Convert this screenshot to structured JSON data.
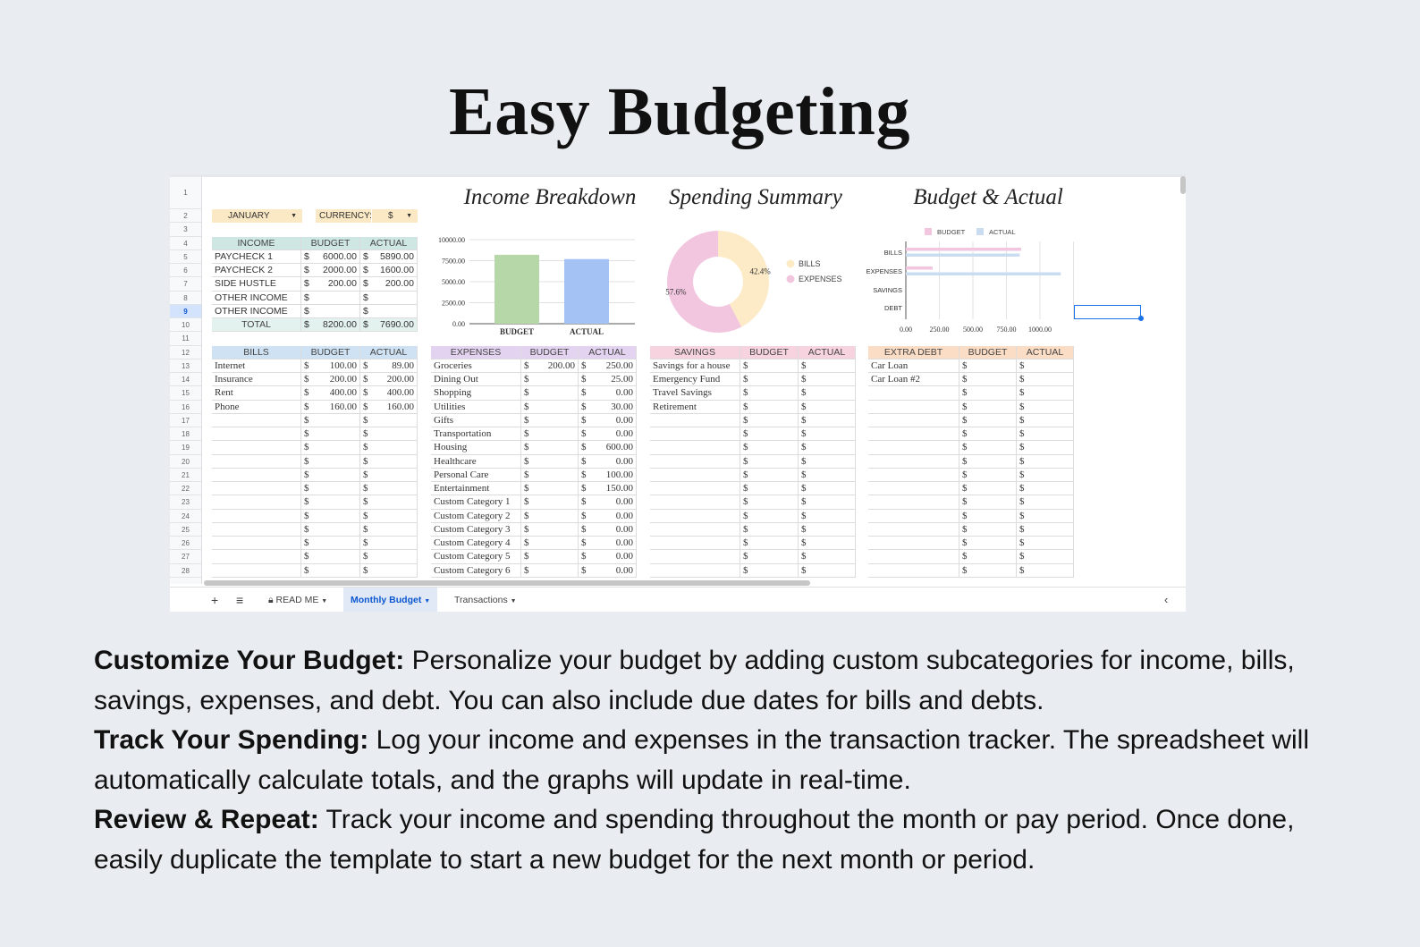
{
  "title": "Easy Budgeting",
  "sheet": {
    "month": "JANUARY",
    "currency_label": "CURRENCY:",
    "currency": "$",
    "selected_row": 9,
    "row_numbers": [
      1,
      2,
      3,
      4,
      5,
      6,
      7,
      8,
      9,
      10,
      11,
      12,
      13,
      14,
      15,
      16,
      17,
      18,
      19,
      20,
      21,
      22,
      23,
      24,
      25,
      26,
      27,
      28
    ],
    "income": {
      "headers": [
        "INCOME",
        "BUDGET",
        "ACTUAL"
      ],
      "header_color": "#cfe7e3",
      "rows": [
        [
          "PAYCHECK 1",
          "6000.00",
          "5890.00"
        ],
        [
          "PAYCHECK 2",
          "2000.00",
          "1600.00"
        ],
        [
          "SIDE HUSTLE",
          "200.00",
          "200.00"
        ],
        [
          "OTHER INCOME",
          "",
          ""
        ],
        [
          "OTHER INCOME",
          "",
          ""
        ]
      ],
      "total": [
        "TOTAL",
        "8200.00",
        "7690.00"
      ]
    },
    "bills": {
      "headers": [
        "BILLS",
        "BUDGET",
        "ACTUAL"
      ],
      "header_color": "#cfe2f3",
      "rows": [
        [
          "Internet",
          "100.00",
          "89.00"
        ],
        [
          "Insurance",
          "200.00",
          "200.00"
        ],
        [
          "Rent",
          "400.00",
          "400.00"
        ],
        [
          "Phone",
          "160.00",
          "160.00"
        ],
        [
          "",
          "",
          ""
        ],
        [
          "",
          "",
          ""
        ],
        [
          "",
          "",
          ""
        ],
        [
          "",
          "",
          ""
        ],
        [
          "",
          "",
          ""
        ],
        [
          "",
          "",
          ""
        ],
        [
          "",
          "",
          ""
        ],
        [
          "",
          "",
          ""
        ],
        [
          "",
          "",
          ""
        ],
        [
          "",
          "",
          ""
        ],
        [
          "",
          "",
          ""
        ],
        [
          "",
          "",
          ""
        ]
      ]
    },
    "expenses": {
      "headers": [
        "EXPENSES",
        "BUDGET",
        "ACTUAL"
      ],
      "header_color": "#e3d3f0",
      "rows": [
        [
          "Groceries",
          "200.00",
          "250.00"
        ],
        [
          "Dining Out",
          "",
          "25.00"
        ],
        [
          "Shopping",
          "",
          "0.00"
        ],
        [
          "Utilities",
          "",
          "30.00"
        ],
        [
          "Gifts",
          "",
          "0.00"
        ],
        [
          "Transportation",
          "",
          "0.00"
        ],
        [
          "Housing",
          "",
          "600.00"
        ],
        [
          "Healthcare",
          "",
          "0.00"
        ],
        [
          "Personal Care",
          "",
          "100.00"
        ],
        [
          "Entertainment",
          "",
          "150.00"
        ],
        [
          "Custom Category 1",
          "",
          "0.00"
        ],
        [
          "Custom Category 2",
          "",
          "0.00"
        ],
        [
          "Custom Category 3",
          "",
          "0.00"
        ],
        [
          "Custom Category 4",
          "",
          "0.00"
        ],
        [
          "Custom Category 5",
          "",
          "0.00"
        ],
        [
          "Custom Category 6",
          "",
          "0.00"
        ]
      ]
    },
    "savings": {
      "headers": [
        "SAVINGS",
        "BUDGET",
        "ACTUAL"
      ],
      "header_color": "#f6d3df",
      "rows": [
        [
          "Savings for a house",
          "",
          ""
        ],
        [
          "Emergency Fund",
          "",
          ""
        ],
        [
          "Travel Savings",
          "",
          ""
        ],
        [
          "Retirement",
          "",
          ""
        ],
        [
          "",
          "",
          ""
        ],
        [
          "",
          "",
          ""
        ],
        [
          "",
          "",
          ""
        ],
        [
          "",
          "",
          ""
        ],
        [
          "",
          "",
          ""
        ],
        [
          "",
          "",
          ""
        ],
        [
          "",
          "",
          ""
        ],
        [
          "",
          "",
          ""
        ],
        [
          "",
          "",
          ""
        ],
        [
          "",
          "",
          ""
        ],
        [
          "",
          "",
          ""
        ],
        [
          "",
          "",
          ""
        ]
      ]
    },
    "extra_debt": {
      "headers": [
        "EXTRA DEBT",
        "BUDGET",
        "ACTUAL"
      ],
      "header_color": "#fbdcc4",
      "rows": [
        [
          "Car Loan",
          "",
          ""
        ],
        [
          "Car Loan #2",
          "",
          ""
        ],
        [
          "",
          "",
          ""
        ],
        [
          "",
          "",
          ""
        ],
        [
          "",
          "",
          ""
        ],
        [
          "",
          "",
          ""
        ],
        [
          "",
          "",
          ""
        ],
        [
          "",
          "",
          ""
        ],
        [
          "",
          "",
          ""
        ],
        [
          "",
          "",
          ""
        ],
        [
          "",
          "",
          ""
        ],
        [
          "",
          "",
          ""
        ],
        [
          "",
          "",
          ""
        ],
        [
          "",
          "",
          ""
        ],
        [
          "",
          "",
          ""
        ],
        [
          "",
          "",
          ""
        ]
      ]
    },
    "tabs": {
      "add_icon": "plus-icon",
      "menu_icon": "menu-icon",
      "items": [
        {
          "label": "READ ME",
          "icon": "lock-icon",
          "active": false
        },
        {
          "label": "Monthly Budget",
          "active": true
        },
        {
          "label": "Transactions",
          "active": false
        }
      ]
    }
  },
  "chart_data": [
    {
      "type": "bar",
      "title": "Income Breakdown",
      "categories": [
        "BUDGET",
        "ACTUAL"
      ],
      "values": [
        8200,
        7690
      ],
      "colors": [
        "#b6d7a8",
        "#a4c2f4"
      ],
      "ylim": [
        0,
        10000
      ],
      "yticks": [
        "0.00",
        "2500.00",
        "5000.00",
        "7500.00",
        "10000.00"
      ],
      "grid": true
    },
    {
      "type": "pie",
      "title": "Spending Summary",
      "donut": true,
      "labels": [
        "BILLS",
        "EXPENSES"
      ],
      "values": [
        42.4,
        57.6
      ],
      "data_labels": [
        "42.4%",
        "57.6%"
      ],
      "colors": [
        "#fcebc6",
        "#f2c6df"
      ],
      "legend": "right"
    },
    {
      "type": "bar",
      "orientation": "horizontal",
      "title": "Budget & Actual",
      "categories": [
        "BILLS",
        "EXPENSES",
        "SAVINGS",
        "DEBT"
      ],
      "series": [
        {
          "name": "BUDGET",
          "values": [
            860,
            200,
            0,
            0
          ],
          "color": "#f2c6df"
        },
        {
          "name": "ACTUAL",
          "values": [
            849,
            1155,
            0,
            0
          ],
          "color": "#c9dcf0"
        }
      ],
      "xlim": [
        0,
        1250
      ],
      "xticks": [
        "0.00",
        "250.00",
        "500.00",
        "750.00",
        "1000.00"
      ],
      "legend": "top",
      "grid": true
    }
  ],
  "description": [
    {
      "heading": "Customize Your Budget:",
      "text": " Personalize your budget by adding custom subcategories for income, bills, savings, expenses, and debt. You can also include due dates for bills and debts."
    },
    {
      "heading": "Track Your Spending:",
      "text": " Log your income and expenses in the transaction tracker. The spreadsheet will automatically calculate totals, and the graphs will update in real-time."
    },
    {
      "heading": "Review & Repeat:",
      "text": " Track your income and spending throughout the month or pay period. Once done, easily duplicate the template to start a new budget for the next month or period."
    }
  ]
}
